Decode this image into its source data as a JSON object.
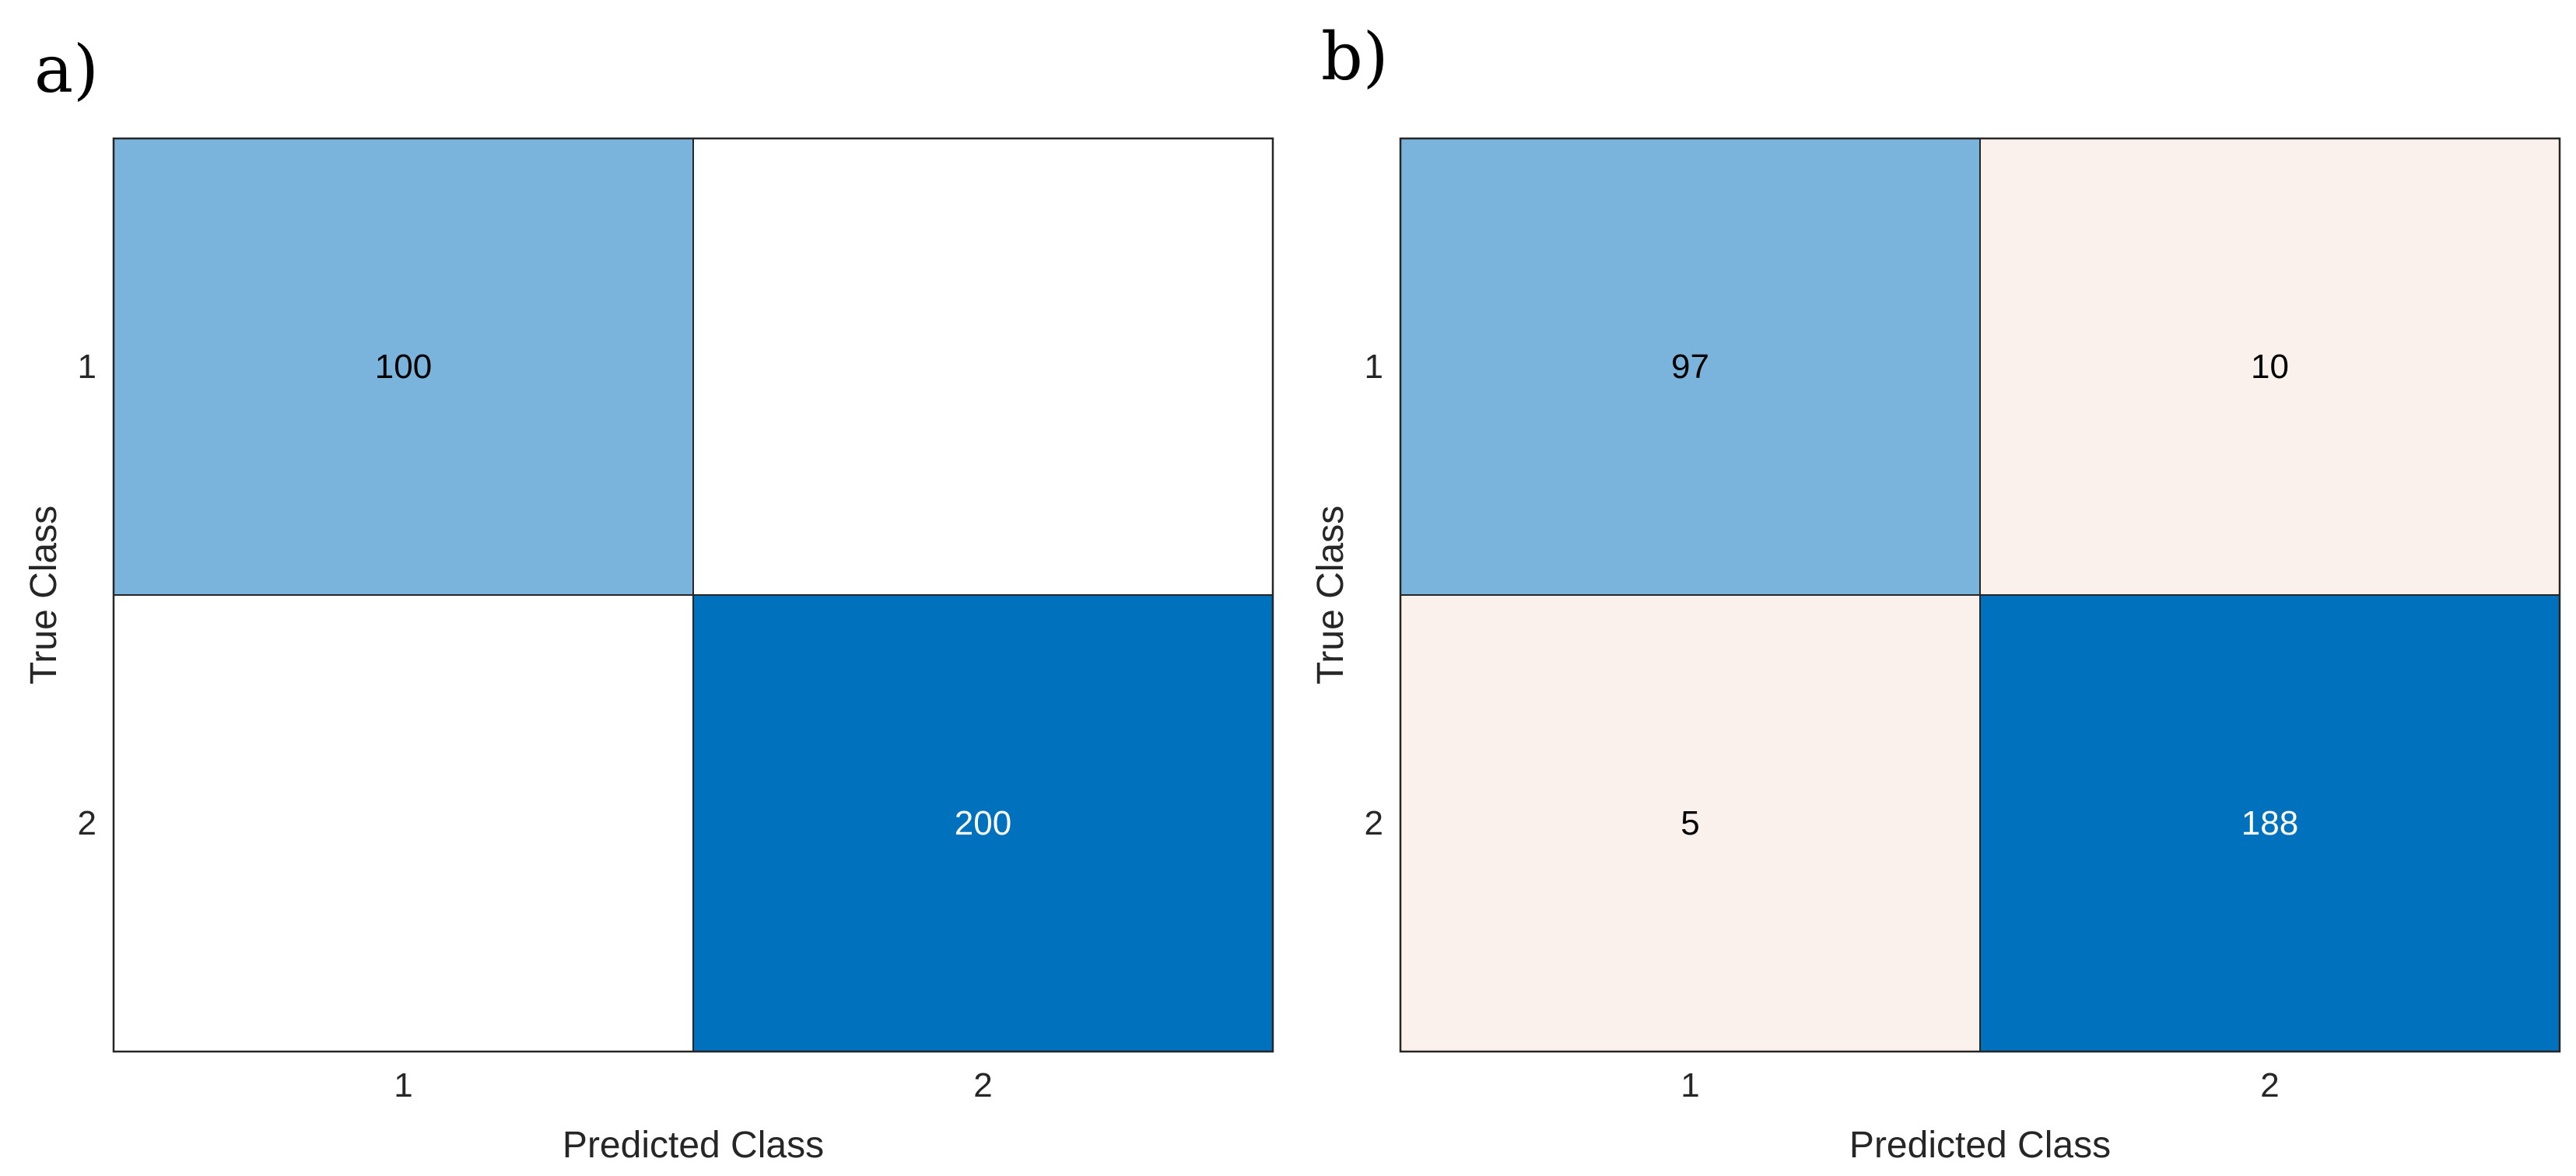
{
  "chart_data": [
    {
      "type": "heatmap",
      "panel_label": "a)",
      "xlabel": "Predicted Class",
      "ylabel": "True Class",
      "x_categories": [
        "1",
        "2"
      ],
      "y_categories": [
        "1",
        "2"
      ],
      "matrix": [
        [
          100,
          null
        ],
        [
          null,
          200
        ]
      ],
      "colors": {
        "diagonal_low": "#7ab4dc",
        "diagonal_high": "#0071bd",
        "off_diagonal": "#fbf1ec",
        "empty": "#ffffff",
        "text_dark": "#000000",
        "text_light": "#ffffff"
      }
    },
    {
      "type": "heatmap",
      "panel_label": "b)",
      "xlabel": "Predicted Class",
      "ylabel": "True Class",
      "x_categories": [
        "1",
        "2"
      ],
      "y_categories": [
        "1",
        "2"
      ],
      "matrix": [
        [
          97,
          10
        ],
        [
          5,
          188
        ]
      ],
      "colors": {
        "diagonal_low": "#7ab4dc",
        "diagonal_high": "#0071bd",
        "off_diagonal": "#fbf1ec",
        "empty": "#ffffff",
        "text_dark": "#000000",
        "text_light": "#ffffff"
      }
    }
  ]
}
